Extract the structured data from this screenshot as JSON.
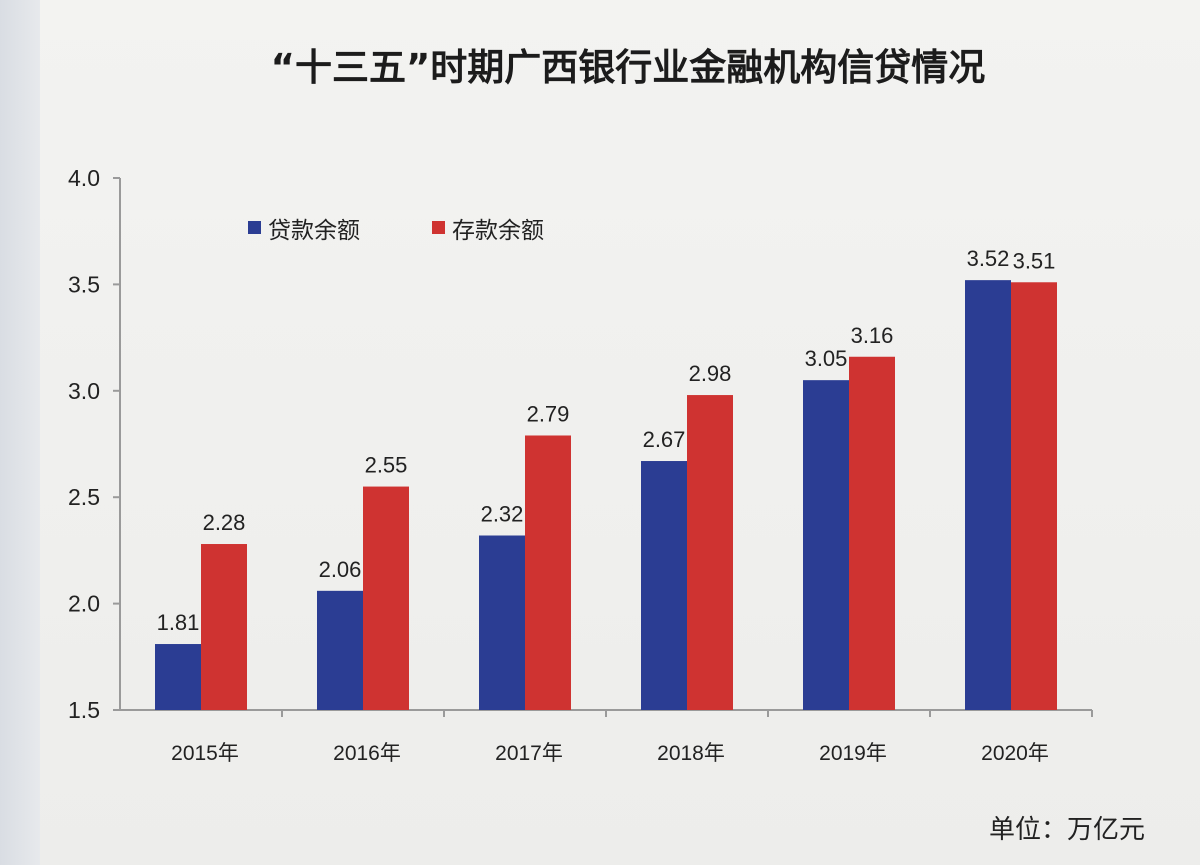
{
  "chart_data": {
    "type": "bar",
    "title": "“十三五”时期广西银行业金融机构信贷情况",
    "unit_label": "单位：万亿元",
    "categories": [
      "2015年",
      "2016年",
      "2017年",
      "2018年",
      "2019年",
      "2020年"
    ],
    "series": [
      {
        "name": "贷款余额",
        "color": "#2b3d93",
        "values": [
          1.81,
          2.06,
          2.32,
          2.67,
          3.05,
          3.52
        ],
        "labels": [
          "1.81",
          "2.06",
          "2.32",
          "2.67",
          "3.05",
          "3.52"
        ]
      },
      {
        "name": "存款余额",
        "color": "#cf3331",
        "values": [
          2.28,
          2.55,
          2.79,
          2.98,
          3.16,
          3.51
        ],
        "labels": [
          "2.28",
          "2.55",
          "2.79",
          "2.98",
          "3.16",
          "3.51"
        ]
      }
    ],
    "ylim": [
      1.5,
      4.0
    ],
    "yticks": [
      "1.5",
      "2.0",
      "2.5",
      "3.0",
      "3.5",
      "4.0"
    ],
    "legend_position": "top-left",
    "grid": false
  }
}
